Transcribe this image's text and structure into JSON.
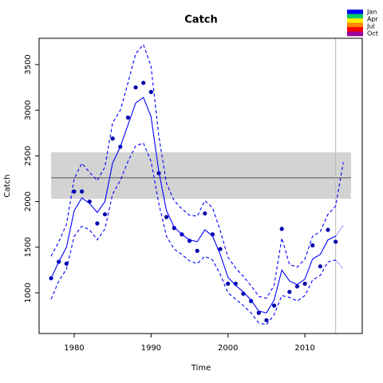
{
  "chart_data": {
    "type": "line",
    "title": "Catch",
    "x_label": "Time",
    "y_label": "Catch",
    "xlim": [
      1975.44,
      2017.46
    ],
    "ylim": [
      554,
      3788
    ],
    "xticks": [
      1980,
      1990,
      2000,
      2010
    ],
    "yticks": [
      1000,
      1500,
      2000,
      2500,
      3000,
      3500
    ],
    "band": {
      "x": [
        1977,
        2016
      ],
      "y": [
        2030,
        2540
      ],
      "color": "#d3d3d3"
    },
    "hline": {
      "value": 2260,
      "color": "#555555"
    },
    "vline": {
      "value": 2014,
      "color": "#bbbbbb"
    },
    "series": [
      {
        "style": "points",
        "color": "#0000aa",
        "x": [
          1977,
          1978,
          1979,
          1980,
          1981,
          1982,
          1983,
          1984,
          1985,
          1986,
          1987,
          1988,
          1989,
          1990,
          1991,
          1992,
          1993,
          1994,
          1995,
          1996,
          1997,
          1998,
          1999,
          2000,
          2001,
          2002,
          2003,
          2004,
          2005,
          2006,
          2007,
          2008,
          2009,
          2010,
          2011,
          2012,
          2013,
          2014
        ],
        "values": [
          1160,
          1340,
          1320,
          2110,
          2110,
          2000,
          1760,
          1860,
          2690,
          2600,
          2920,
          3250,
          3300,
          3200,
          2310,
          1830,
          1710,
          1640,
          1570,
          1460,
          1870,
          1640,
          1480,
          1100,
          1100,
          990,
          910,
          780,
          700,
          860,
          1700,
          1010,
          1070,
          1100,
          1520,
          1290,
          1690,
          1560
        ]
      },
      {
        "style": "solid",
        "color": "#0000ff",
        "x": [
          1977,
          1978,
          1979,
          1980,
          1981,
          1982,
          1983,
          1984,
          1985,
          1986,
          1987,
          1988,
          1989,
          1990,
          1991,
          1992,
          1993,
          1994,
          1995,
          1996,
          1997,
          1998,
          1999,
          2000,
          2001,
          2002,
          2003,
          2004,
          2005,
          2006,
          2007,
          2008,
          2009,
          2010,
          2011,
          2012,
          2013,
          2014
        ],
        "values": [
          1160,
          1340,
          1500,
          1900,
          2040,
          1980,
          1880,
          2000,
          2420,
          2600,
          2840,
          3080,
          3140,
          2930,
          2330,
          1900,
          1720,
          1640,
          1580,
          1560,
          1690,
          1620,
          1420,
          1170,
          1080,
          1010,
          920,
          800,
          780,
          920,
          1250,
          1130,
          1090,
          1150,
          1370,
          1420,
          1580,
          1620
        ]
      },
      {
        "style": "dashed",
        "color": "#0000ff",
        "x": [
          1977,
          1978,
          1979,
          1980,
          1981,
          1982,
          1983,
          1984,
          1985,
          1986,
          1987,
          1988,
          1989,
          1990,
          1991,
          1992,
          1993,
          1994,
          1995,
          1996,
          1997,
          1998,
          1999,
          2000,
          2001,
          2002,
          2003,
          2004,
          2005,
          2006,
          2007,
          2008,
          2009,
          2010,
          2011,
          2012,
          2013,
          2014,
          2015
        ],
        "values": [
          1400,
          1560,
          1750,
          2250,
          2420,
          2320,
          2230,
          2380,
          2860,
          3000,
          3300,
          3620,
          3720,
          3480,
          2720,
          2200,
          2010,
          1920,
          1850,
          1840,
          2010,
          1930,
          1680,
          1390,
          1270,
          1180,
          1080,
          960,
          940,
          1080,
          1600,
          1310,
          1280,
          1370,
          1620,
          1670,
          1860,
          1950,
          2430
        ]
      },
      {
        "style": "dashed",
        "color": "#0000ff",
        "x": [
          1977,
          1978,
          1979,
          1980,
          1981,
          1982,
          1983,
          1984,
          1985,
          1986,
          1987,
          1988,
          1989,
          1990,
          1991,
          1992,
          1993,
          1994,
          1995,
          1996,
          1997,
          1998,
          1999,
          2000,
          2001,
          2002,
          2003,
          2004,
          2005,
          2006,
          2007,
          2008,
          2009,
          2010,
          2011,
          2012,
          2013,
          2014
        ],
        "values": [
          930,
          1130,
          1260,
          1620,
          1730,
          1690,
          1580,
          1700,
          2080,
          2230,
          2440,
          2610,
          2640,
          2440,
          1980,
          1620,
          1480,
          1420,
          1350,
          1320,
          1400,
          1360,
          1200,
          1000,
          930,
          860,
          780,
          670,
          650,
          760,
          970,
          950,
          910,
          970,
          1140,
          1190,
          1340,
          1360
        ]
      },
      {
        "style": "dotted",
        "color": "#0000ff",
        "x": [
          2014,
          2015
        ],
        "values": [
          1620,
          1740
        ]
      },
      {
        "style": "dotted",
        "color": "#0000ff",
        "x": [
          2014,
          2015
        ],
        "values": [
          1360,
          1260
        ]
      }
    ],
    "legend": {
      "labels": [
        "Jan",
        "Apr",
        "Jul",
        "Oct"
      ],
      "colors": [
        "#0000ff",
        "#00cc66",
        "#ffee00",
        "#ff8800",
        "#ff0000",
        "#990099"
      ]
    }
  }
}
